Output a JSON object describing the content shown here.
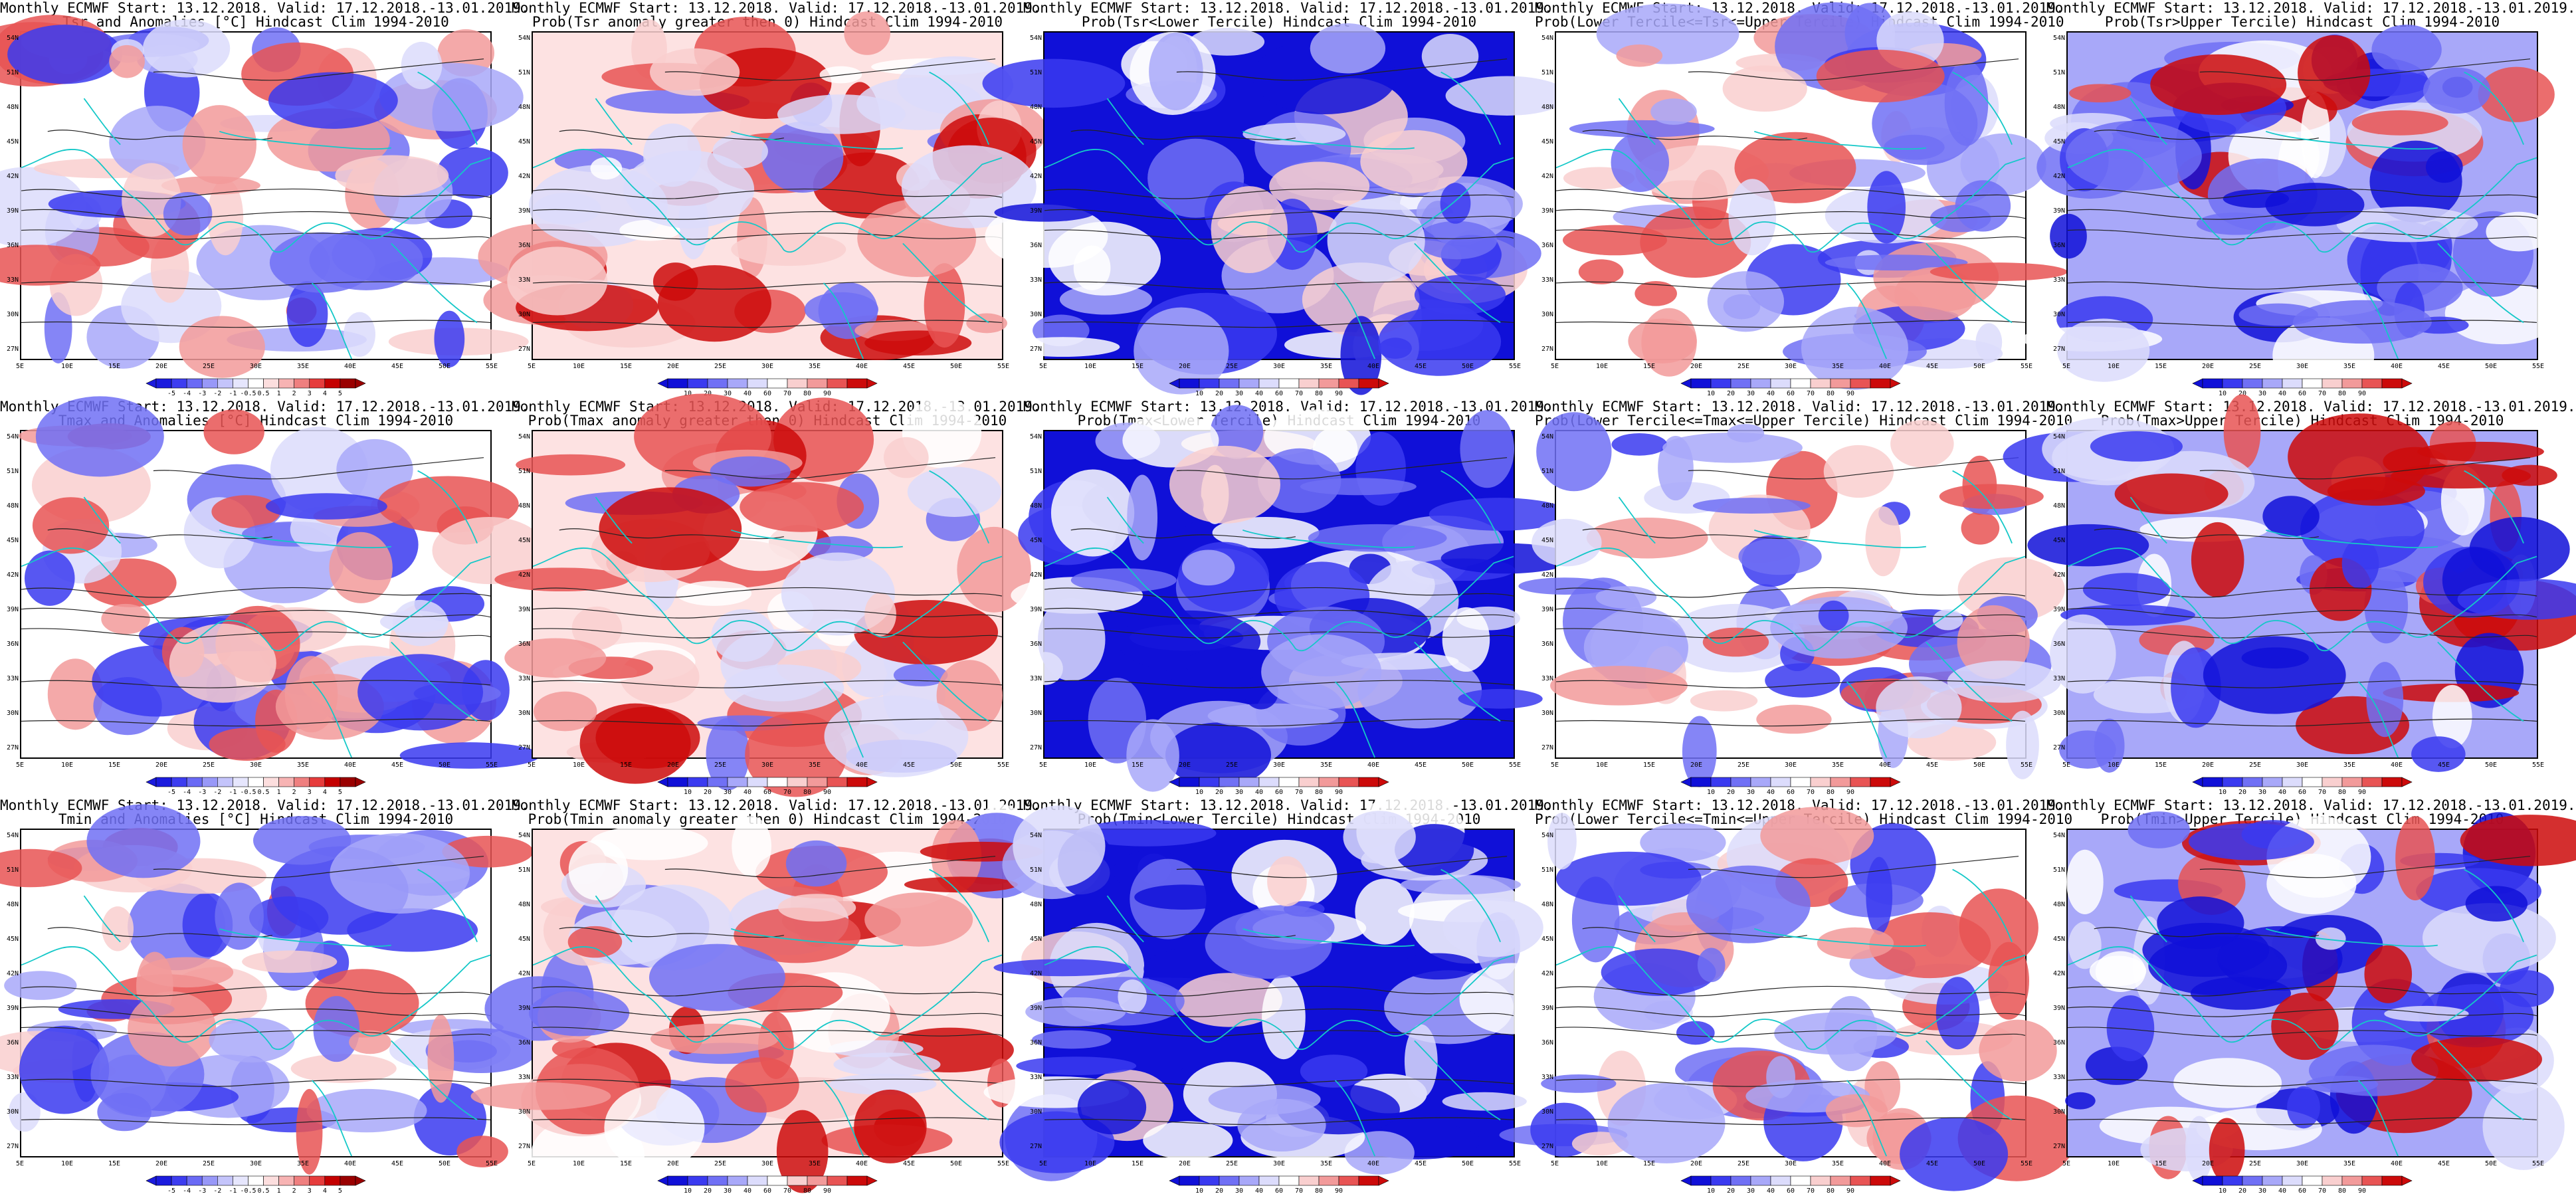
{
  "lat_ticks": [
    "54N",
    "51N",
    "48N",
    "45N",
    "42N",
    "39N",
    "36N",
    "33N",
    "30N",
    "27N"
  ],
  "lon_ticks": [
    "5E",
    "10E",
    "15E",
    "20E",
    "25E",
    "30E",
    "35E",
    "40E",
    "45E",
    "50E",
    "55E"
  ],
  "scales": {
    "anom": [
      "-5",
      "-4",
      "-3",
      "-2",
      "-1",
      "-0.5",
      "0.5",
      "1",
      "2",
      "3",
      "4",
      "5"
    ],
    "anom_alt": [
      "-5",
      "-4",
      "-3",
      "-2",
      "-1",
      "-0.5",
      "0.5",
      "1",
      "2",
      "3",
      "4",
      "5"
    ],
    "prob": [
      "10",
      "20",
      "30",
      "40",
      "60",
      "70",
      "80",
      "90"
    ],
    "colors_anom": [
      "#1b1bde",
      "#3d3df0",
      "#6a6af5",
      "#9898f8",
      "#c4c4fb",
      "#e6e6fd",
      "#ffffff",
      "#fcdede",
      "#f7b3b3",
      "#ef7f7f",
      "#e63c3c",
      "#c40000",
      "#9a0000"
    ],
    "colors_prob": [
      "#1010d8",
      "#3a3af0",
      "#7070f5",
      "#a8a8f9",
      "#dcdcfc",
      "#ffffff",
      "#f9cfcf",
      "#f29a9a",
      "#e85454",
      "#cc0a0a"
    ]
  },
  "panels": [
    {
      "title1": "Monthly ECMWF Start: 13.12.2018. Valid: 17.12.2018.-13.01.2019.",
      "title2": "Tsr and Anomalies [°C] Hindcast Clim 1994-2010",
      "scale": "anom",
      "theme": "mixed"
    },
    {
      "title1": "Monthly ECMWF Start: 13.12.2018. Valid: 17.12.2018.-13.01.2019.",
      "title2": "Prob(Tsr anomaly greater then 0) Hindcast Clim 1994-2010",
      "scale": "prob",
      "theme": "red"
    },
    {
      "title1": "Monthly ECMWF Start: 13.12.2018. Valid: 17.12.2018.-13.01.2019.",
      "title2": "Prob(Tsr<Lower Tercile) Hindcast Clim 1994-2010",
      "scale": "prob",
      "theme": "blue"
    },
    {
      "title1": "Monthly ECMWF Start: 13.12.2018. Valid: 17.12.2018.-13.01.2019.",
      "title2": "Prob(Lower Tercile<=Tsr<=Upper Tercile) Hindcast Clim 1994-2010",
      "scale": "prob",
      "theme": "mixed"
    },
    {
      "title1": "Monthly ECMWF Start: 13.12.2018. Valid: 17.12.2018.-13.01.2019.",
      "title2": "Prob(Tsr>Upper Tercile) Hindcast Clim 1994-2010",
      "scale": "prob",
      "theme": "blue2"
    },
    {
      "title1": "Monthly ECMWF Start: 13.12.2018. Valid: 17.12.2018.-13.01.2019.",
      "title2": "Tmax and Anomalies [°C] Hindcast Clim 1994-2010",
      "scale": "anom_alt",
      "theme": "mixed"
    },
    {
      "title1": "Monthly ECMWF Start: 13.12.2018. Valid: 17.12.2018.-13.01.2019.",
      "title2": "Prob(Tmax anomaly greater then 0) Hindcast Clim 1994-2010",
      "scale": "prob",
      "theme": "red"
    },
    {
      "title1": "Monthly ECMWF Start: 13.12.2018. Valid: 17.12.2018.-13.01.2019.",
      "title2": "Prob(Tmax<Lower Tercile) Hindcast Clim 1994-2010",
      "scale": "prob",
      "theme": "blue"
    },
    {
      "title1": "Monthly ECMWF Start: 13.12.2018. Valid: 17.12.2018.-13.01.2019.",
      "title2": "Prob(Lower Tercile<=Tmax<=Upper Tercile) Hindcast Clim 1994-2010",
      "scale": "prob",
      "theme": "mixed"
    },
    {
      "title1": "Monthly ECMWF Start: 13.12.2018. Valid: 17.12.2018.-13.01.2019.",
      "title2": "Prob(Tmax>Upper Tercile) Hindcast Clim 1994-2010",
      "scale": "prob",
      "theme": "blue2"
    },
    {
      "title1": "Monthly ECMWF Start: 13.12.2018. Valid: 17.12.2018.-13.01.2019.",
      "title2": "Tmin and Anomalies [°C] Hindcast Clim 1994-2010",
      "scale": "anom",
      "theme": "mixed"
    },
    {
      "title1": "Monthly ECMWF Start: 13.12.2018. Valid: 17.12.2018.-13.01.2019.",
      "title2": "Prob(Tmin anomaly greater then 0) Hindcast Clim 1994-2010",
      "scale": "prob",
      "theme": "red"
    },
    {
      "title1": "Monthly ECMWF Start: 13.12.2018. Valid: 17.12.2018.-13.01.2019.",
      "title2": "Prob(Tmin<Lower Tercile) Hindcast Clim 1994-2010",
      "scale": "prob",
      "theme": "blue"
    },
    {
      "title1": "Monthly ECMWF Start: 13.12.2018. Valid: 17.12.2018.-13.01.2019.",
      "title2": "Prob(Lower Tercile<=Tmin<=Upper Tercile) Hindcast Clim 1994-2010",
      "scale": "prob",
      "theme": "mixed"
    },
    {
      "title1": "Monthly ECMWF Start: 13.12.2018. Valid: 17.12.2018.-13.01.2019.",
      "title2": "Prob(Tmin>Upper Tercile) Hindcast Clim 1994-2010",
      "scale": "prob",
      "theme": "blue2"
    }
  ]
}
